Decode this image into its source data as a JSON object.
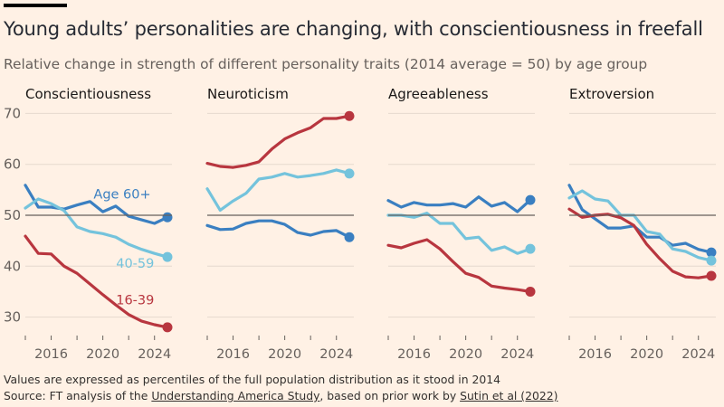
{
  "header": {
    "title": "Young adults’ personalities are changing, with conscientiousness in freefall",
    "subtitle": "Relative change in strength of different personality traits (2014 average = 50) by age group"
  },
  "footer": {
    "note": "Values are expressed as percentiles of the full population distribution as it stood in 2014",
    "source_prefix": "Source: FT analysis of the ",
    "source_link1": "Understanding America Study",
    "source_middle": ", based on prior work by ",
    "source_link2": "Sutin et al (2022)"
  },
  "colors": {
    "age_16_39": "#b8363f",
    "age_40_59": "#74c3dc",
    "age_60_plus": "#3a7fc1",
    "background": "#fff1e5"
  },
  "chart_data": {
    "type": "line",
    "title": "Young adults’ personalities are changing, with conscientiousness in freefall",
    "subtitle": "Relative change in strength of different personality traits (2014 average = 50) by age group",
    "x": [
      2014,
      2015,
      2016,
      2017,
      2018,
      2019,
      2020,
      2021,
      2022,
      2023,
      2024,
      2025
    ],
    "xticks": [
      2014,
      2016,
      2018,
      2020,
      2022,
      2024
    ],
    "xtick_labels": [
      "2016",
      "2020",
      "2024"
    ],
    "xtick_label_values": [
      2016,
      2020,
      2024
    ],
    "yticks": [
      30,
      40,
      50,
      60,
      70
    ],
    "ylim": [
      26,
      71
    ],
    "reference_line": 50,
    "grid": true,
    "legend": "inline labels",
    "panels": [
      {
        "name": "Conscientiousness",
        "series": [
          {
            "name": "Age 60+",
            "key": "age_60_plus",
            "values": [
              55.9,
              51.6,
              51.6,
              51.2,
              52.0,
              52.7,
              50.7,
              51.8,
              49.8,
              49.1,
              48.4,
              49.6
            ]
          },
          {
            "name": "40-59",
            "key": "age_40_59",
            "values": [
              51.4,
              53.2,
              52.3,
              50.9,
              47.7,
              46.8,
              46.4,
              45.7,
              44.3,
              43.3,
              42.5,
              41.8
            ]
          },
          {
            "name": "16-39",
            "key": "age_16_39",
            "values": [
              45.9,
              42.5,
              42.4,
              40.0,
              38.6,
              36.5,
              34.4,
              32.4,
              30.5,
              29.2,
              28.5,
              28.0
            ]
          }
        ],
        "labels": [
          {
            "text": "Age 60+",
            "key": "age_60_plus",
            "x": 2021.5,
            "y": 53.3
          },
          {
            "text": "40-59",
            "key": "age_40_59",
            "x": 2022.5,
            "y": 39.7
          },
          {
            "text": "16-39",
            "key": "age_16_39",
            "x": 2022.5,
            "y": 32.5
          }
        ]
      },
      {
        "name": "Neuroticism",
        "series": [
          {
            "name": "Age 60+",
            "key": "age_60_plus",
            "values": [
              48.0,
              47.2,
              47.3,
              48.4,
              48.9,
              48.9,
              48.2,
              46.6,
              46.1,
              46.8,
              47.0,
              45.7
            ]
          },
          {
            "name": "40-59",
            "key": "age_40_59",
            "values": [
              55.2,
              51.0,
              52.8,
              54.3,
              57.1,
              57.5,
              58.2,
              57.5,
              57.8,
              58.2,
              58.9,
              58.2
            ]
          },
          {
            "name": "16-39",
            "key": "age_16_39",
            "values": [
              60.2,
              59.6,
              59.4,
              59.8,
              60.5,
              63.0,
              65.0,
              66.2,
              67.2,
              69.0,
              69.0,
              69.5
            ]
          }
        ],
        "labels": []
      },
      {
        "name": "Agreeableness",
        "series": [
          {
            "name": "Age 60+",
            "key": "age_60_plus",
            "values": [
              52.9,
              51.6,
              52.5,
              52.0,
              52.0,
              52.3,
              51.6,
              53.6,
              51.8,
              52.5,
              50.7,
              53.0
            ]
          },
          {
            "name": "40-59",
            "key": "age_40_59",
            "values": [
              50.0,
              50.0,
              49.6,
              50.4,
              48.4,
              48.4,
              45.4,
              45.7,
              43.1,
              43.8,
              42.5,
              43.4
            ]
          },
          {
            "name": "16-39",
            "key": "age_16_39",
            "values": [
              44.1,
              43.6,
              44.5,
              45.2,
              43.4,
              40.9,
              38.6,
              37.8,
              36.1,
              35.7,
              35.4,
              35.0
            ]
          }
        ],
        "labels": []
      },
      {
        "name": "Extroversion",
        "series": [
          {
            "name": "Age 60+",
            "key": "age_60_plus",
            "values": [
              55.9,
              51.1,
              49.3,
              47.5,
              47.5,
              47.9,
              45.7,
              45.7,
              44.1,
              44.5,
              43.3,
              42.7
            ]
          },
          {
            "name": "40-59",
            "key": "age_40_59",
            "values": [
              53.4,
              54.8,
              53.2,
              52.8,
              50.0,
              50.0,
              46.8,
              46.3,
              43.4,
              42.9,
              41.7,
              41.1
            ]
          },
          {
            "name": "16-39",
            "key": "age_16_39",
            "values": [
              51.2,
              49.6,
              50.0,
              50.2,
              49.5,
              48.0,
              44.3,
              41.5,
              39.0,
              37.9,
              37.7,
              38.1
            ]
          }
        ],
        "labels": []
      }
    ]
  }
}
